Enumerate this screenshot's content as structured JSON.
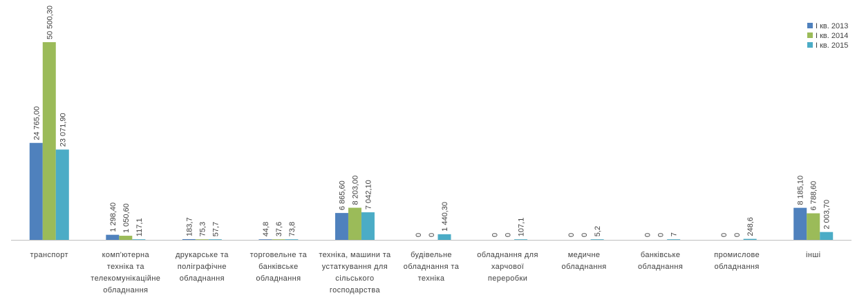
{
  "chart_data": {
    "type": "bar",
    "title": "",
    "xlabel": "",
    "ylabel": "",
    "ylim": [
      0,
      50500.3
    ],
    "grid": false,
    "legend_position": "top-right",
    "categories": [
      [
        "транспорт"
      ],
      [
        "комп'ютерна",
        "техніка та",
        "телекомунікаційне",
        "обладнання"
      ],
      [
        "друкарське та",
        "поліграфічне",
        "обладнання"
      ],
      [
        "торговельне та",
        "банківське",
        "обладнання"
      ],
      [
        "техніка, машини та",
        "устаткування для",
        "сільського",
        "господарства"
      ],
      [
        "будівельне",
        "обладнання та",
        "техніка"
      ],
      [
        "обладнання для",
        "харчової",
        "переробки"
      ],
      [
        "медичне",
        "обладнання"
      ],
      [
        "банківське",
        "обладнання"
      ],
      [
        "промислове",
        "обладнання"
      ],
      [
        "інші"
      ]
    ],
    "series": [
      {
        "name": "I кв. 2013",
        "color": "#4f81bd",
        "values": [
          24765.0,
          1298.4,
          183.7,
          44.8,
          6865.6,
          0,
          0,
          0,
          0,
          0,
          8185.1
        ],
        "labels": [
          "24 765,00",
          "1 298,40",
          "183,7",
          "44,8",
          "6 865,60",
          "0",
          "0",
          "0",
          "0",
          "0",
          "8 185,10"
        ]
      },
      {
        "name": "I кв. 2014",
        "color": "#9bbb59",
        "values": [
          50500.3,
          1050.6,
          75.3,
          37.6,
          8203.0,
          0,
          0,
          0,
          0,
          0,
          6788.6
        ],
        "labels": [
          "50 500,30",
          "1 050,60",
          "75,3",
          "37,6",
          "8 203,00",
          "0",
          "0",
          "0",
          "0",
          "0",
          "6 788,60"
        ]
      },
      {
        "name": "I кв. 2015",
        "color": "#4bacc6",
        "values": [
          23071.9,
          117.1,
          57.7,
          73.8,
          7042.1,
          1440.3,
          107.1,
          5.2,
          7,
          248.6,
          2003.7
        ],
        "labels": [
          "23 071,90",
          "117,1",
          "57,7",
          "73,8",
          "7 042,10",
          "1 440,30",
          "107,1",
          "5,2",
          "7",
          "248,6",
          "2 003,70"
        ]
      }
    ]
  }
}
